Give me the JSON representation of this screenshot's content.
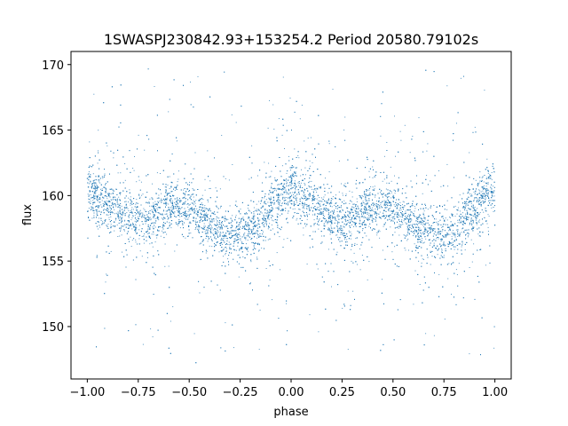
{
  "chart_data": {
    "type": "scatter",
    "title": "1SWASPJ230842.93+153254.2 Period 20580.79102s",
    "xlabel": "phase",
    "ylabel": "flux",
    "xlim": [
      -1.08,
      1.08
    ],
    "ylim": [
      146.0,
      171.0
    ],
    "xticks": [
      -1.0,
      -0.75,
      -0.5,
      -0.25,
      0.0,
      0.25,
      0.5,
      0.75,
      1.0
    ],
    "xtick_labels": [
      "−1.00",
      "−0.75",
      "−0.50",
      "−0.25",
      "0.00",
      "0.25",
      "0.50",
      "0.75",
      "1.00"
    ],
    "yticks": [
      150,
      155,
      160,
      165,
      170
    ],
    "ytick_labels": [
      "150",
      "155",
      "160",
      "165",
      "170"
    ],
    "grid": false,
    "marker_color": "#1f77b4",
    "series": [
      {
        "phase": [
          -1.0,
          -0.9,
          -0.8,
          -0.7,
          -0.6,
          -0.5,
          -0.4,
          -0.3,
          -0.2,
          -0.1,
          0.0,
          0.1,
          0.2,
          0.3,
          0.4,
          0.5,
          0.6,
          0.7,
          0.8,
          0.9,
          1.0
        ],
        "mean_flux": [
          160.5,
          159.5,
          158.3,
          158.3,
          159.2,
          159.0,
          157.8,
          157.0,
          157.3,
          159.0,
          160.5,
          159.5,
          158.3,
          158.3,
          159.2,
          159.0,
          157.8,
          157.0,
          157.3,
          159.0,
          160.5
        ]
      }
    ]
  }
}
